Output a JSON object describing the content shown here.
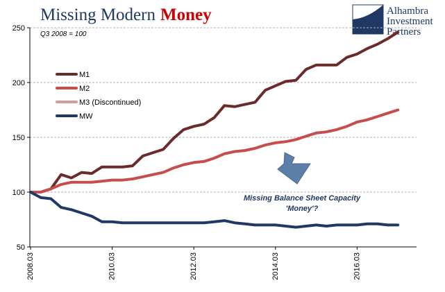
{
  "header": {
    "title_part1": "Missing Modern",
    "title_part2": "Money",
    "title_color1": "#1f3864",
    "title_color2": "#d00000",
    "brand_line1": "Alhambra",
    "brand_line2": "Investment",
    "brand_line3": "Partners",
    "brand_color": "#1f3864"
  },
  "chart_data": {
    "type": "line",
    "note": "Q3 2008 = 100",
    "annotation_line1": "Missing Balance Sheet Capacity",
    "annotation_line2": "'Money'?",
    "ylim": [
      50,
      250
    ],
    "yticks": [
      50,
      100,
      150,
      200,
      250
    ],
    "xtick_labels": [
      "2008.03",
      "2010.03",
      "2012.03",
      "2014.03",
      "2016.03"
    ],
    "grid": true,
    "legend_position": "upper-left",
    "x_start": "2008-Q3",
    "x_end": "2017-Q2",
    "series": [
      {
        "name": "M1",
        "color": "#6b2b2b",
        "values": [
          100,
          100,
          103,
          116,
          113,
          118,
          117,
          123,
          123,
          123,
          124,
          133,
          136,
          139,
          149,
          157,
          160,
          162,
          168,
          179,
          178,
          180,
          182,
          193,
          197,
          201,
          202,
          212,
          216,
          216,
          216,
          223,
          226,
          231,
          235,
          240,
          246
        ]
      },
      {
        "name": "M2",
        "color": "#c84c4c",
        "values": [
          100,
          100,
          103,
          107,
          109,
          109,
          109,
          110,
          111,
          111,
          112,
          114,
          116,
          118,
          122,
          125,
          127,
          128,
          131,
          135,
          137,
          138,
          140,
          143,
          145,
          146,
          148,
          151,
          154,
          155,
          157,
          160,
          164,
          166,
          169,
          172,
          175
        ]
      },
      {
        "name": "M3 (Discontinued)",
        "color": "#d99a9a",
        "values": []
      },
      {
        "name": "MW",
        "color": "#1f3864",
        "values": [
          100,
          95,
          94,
          86,
          84,
          81,
          78,
          73,
          73,
          72,
          72,
          72,
          72,
          72,
          72,
          72,
          72,
          72,
          73,
          74,
          72,
          71,
          70,
          70,
          70,
          69,
          68,
          69,
          70,
          69,
          70,
          70,
          70,
          71,
          71,
          70,
          70
        ]
      }
    ]
  }
}
